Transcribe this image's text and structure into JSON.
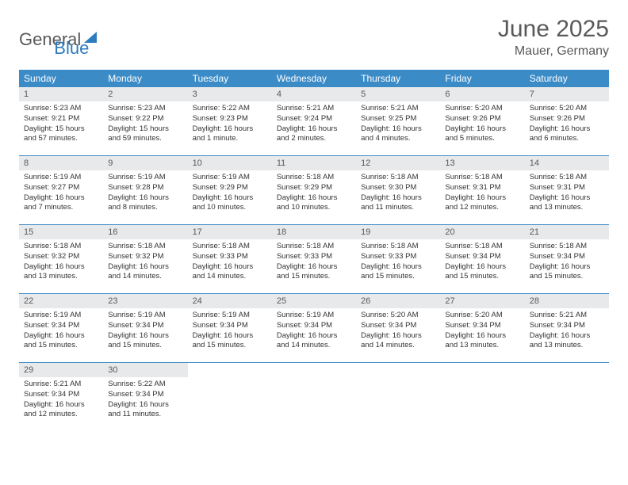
{
  "logo": {
    "text1": "General",
    "text2": "Blue"
  },
  "title": "June 2025",
  "location": "Mauer, Germany",
  "colors": {
    "header_bg": "#3b8bc7",
    "header_text": "#ffffff",
    "daynum_bg": "#e8e9ea",
    "daynum_text": "#58595b",
    "border": "#3b8bc7",
    "body_text": "#333333",
    "title_text": "#58595b",
    "logo_gray": "#58595b",
    "logo_blue": "#2f7bbf"
  },
  "weekdays": [
    "Sunday",
    "Monday",
    "Tuesday",
    "Wednesday",
    "Thursday",
    "Friday",
    "Saturday"
  ],
  "weeks": [
    [
      {
        "n": "1",
        "sr": "Sunrise: 5:23 AM",
        "ss": "Sunset: 9:21 PM",
        "dl": "Daylight: 15 hours and 57 minutes."
      },
      {
        "n": "2",
        "sr": "Sunrise: 5:23 AM",
        "ss": "Sunset: 9:22 PM",
        "dl": "Daylight: 15 hours and 59 minutes."
      },
      {
        "n": "3",
        "sr": "Sunrise: 5:22 AM",
        "ss": "Sunset: 9:23 PM",
        "dl": "Daylight: 16 hours and 1 minute."
      },
      {
        "n": "4",
        "sr": "Sunrise: 5:21 AM",
        "ss": "Sunset: 9:24 PM",
        "dl": "Daylight: 16 hours and 2 minutes."
      },
      {
        "n": "5",
        "sr": "Sunrise: 5:21 AM",
        "ss": "Sunset: 9:25 PM",
        "dl": "Daylight: 16 hours and 4 minutes."
      },
      {
        "n": "6",
        "sr": "Sunrise: 5:20 AM",
        "ss": "Sunset: 9:26 PM",
        "dl": "Daylight: 16 hours and 5 minutes."
      },
      {
        "n": "7",
        "sr": "Sunrise: 5:20 AM",
        "ss": "Sunset: 9:26 PM",
        "dl": "Daylight: 16 hours and 6 minutes."
      }
    ],
    [
      {
        "n": "8",
        "sr": "Sunrise: 5:19 AM",
        "ss": "Sunset: 9:27 PM",
        "dl": "Daylight: 16 hours and 7 minutes."
      },
      {
        "n": "9",
        "sr": "Sunrise: 5:19 AM",
        "ss": "Sunset: 9:28 PM",
        "dl": "Daylight: 16 hours and 8 minutes."
      },
      {
        "n": "10",
        "sr": "Sunrise: 5:19 AM",
        "ss": "Sunset: 9:29 PM",
        "dl": "Daylight: 16 hours and 10 minutes."
      },
      {
        "n": "11",
        "sr": "Sunrise: 5:18 AM",
        "ss": "Sunset: 9:29 PM",
        "dl": "Daylight: 16 hours and 10 minutes."
      },
      {
        "n": "12",
        "sr": "Sunrise: 5:18 AM",
        "ss": "Sunset: 9:30 PM",
        "dl": "Daylight: 16 hours and 11 minutes."
      },
      {
        "n": "13",
        "sr": "Sunrise: 5:18 AM",
        "ss": "Sunset: 9:31 PM",
        "dl": "Daylight: 16 hours and 12 minutes."
      },
      {
        "n": "14",
        "sr": "Sunrise: 5:18 AM",
        "ss": "Sunset: 9:31 PM",
        "dl": "Daylight: 16 hours and 13 minutes."
      }
    ],
    [
      {
        "n": "15",
        "sr": "Sunrise: 5:18 AM",
        "ss": "Sunset: 9:32 PM",
        "dl": "Daylight: 16 hours and 13 minutes."
      },
      {
        "n": "16",
        "sr": "Sunrise: 5:18 AM",
        "ss": "Sunset: 9:32 PM",
        "dl": "Daylight: 16 hours and 14 minutes."
      },
      {
        "n": "17",
        "sr": "Sunrise: 5:18 AM",
        "ss": "Sunset: 9:33 PM",
        "dl": "Daylight: 16 hours and 14 minutes."
      },
      {
        "n": "18",
        "sr": "Sunrise: 5:18 AM",
        "ss": "Sunset: 9:33 PM",
        "dl": "Daylight: 16 hours and 15 minutes."
      },
      {
        "n": "19",
        "sr": "Sunrise: 5:18 AM",
        "ss": "Sunset: 9:33 PM",
        "dl": "Daylight: 16 hours and 15 minutes."
      },
      {
        "n": "20",
        "sr": "Sunrise: 5:18 AM",
        "ss": "Sunset: 9:34 PM",
        "dl": "Daylight: 16 hours and 15 minutes."
      },
      {
        "n": "21",
        "sr": "Sunrise: 5:18 AM",
        "ss": "Sunset: 9:34 PM",
        "dl": "Daylight: 16 hours and 15 minutes."
      }
    ],
    [
      {
        "n": "22",
        "sr": "Sunrise: 5:19 AM",
        "ss": "Sunset: 9:34 PM",
        "dl": "Daylight: 16 hours and 15 minutes."
      },
      {
        "n": "23",
        "sr": "Sunrise: 5:19 AM",
        "ss": "Sunset: 9:34 PM",
        "dl": "Daylight: 16 hours and 15 minutes."
      },
      {
        "n": "24",
        "sr": "Sunrise: 5:19 AM",
        "ss": "Sunset: 9:34 PM",
        "dl": "Daylight: 16 hours and 15 minutes."
      },
      {
        "n": "25",
        "sr": "Sunrise: 5:19 AM",
        "ss": "Sunset: 9:34 PM",
        "dl": "Daylight: 16 hours and 14 minutes."
      },
      {
        "n": "26",
        "sr": "Sunrise: 5:20 AM",
        "ss": "Sunset: 9:34 PM",
        "dl": "Daylight: 16 hours and 14 minutes."
      },
      {
        "n": "27",
        "sr": "Sunrise: 5:20 AM",
        "ss": "Sunset: 9:34 PM",
        "dl": "Daylight: 16 hours and 13 minutes."
      },
      {
        "n": "28",
        "sr": "Sunrise: 5:21 AM",
        "ss": "Sunset: 9:34 PM",
        "dl": "Daylight: 16 hours and 13 minutes."
      }
    ],
    [
      {
        "n": "29",
        "sr": "Sunrise: 5:21 AM",
        "ss": "Sunset: 9:34 PM",
        "dl": "Daylight: 16 hours and 12 minutes."
      },
      {
        "n": "30",
        "sr": "Sunrise: 5:22 AM",
        "ss": "Sunset: 9:34 PM",
        "dl": "Daylight: 16 hours and 11 minutes."
      },
      {
        "empty": true
      },
      {
        "empty": true
      },
      {
        "empty": true
      },
      {
        "empty": true
      },
      {
        "empty": true
      }
    ]
  ]
}
